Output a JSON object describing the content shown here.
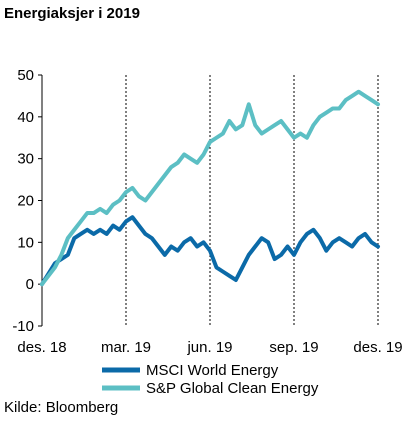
{
  "chart_data": {
    "type": "line",
    "title": "Energiaksjer i 2019",
    "xlabel": "",
    "ylabel": "",
    "ylim": [
      -10,
      50
    ],
    "yticks": [
      "-10",
      "0",
      "10",
      "20",
      "30",
      "40",
      "50"
    ],
    "x_tick_labels": [
      "des. 18",
      "mar. 19",
      "jun. 19",
      "sep. 19",
      "des. 19"
    ],
    "grid": "vertical dashed at x ticks",
    "legend_placement": "bottom-left",
    "source": "Kilde: Bloomberg",
    "series": [
      {
        "name": "MSCI World Energy",
        "color": "#0b6aa8",
        "x": [
          0,
          2,
          3,
          4,
          5,
          6,
          7,
          8,
          9,
          10,
          11,
          12,
          13,
          14,
          15,
          16,
          17,
          18,
          19,
          20,
          21,
          22,
          23,
          24,
          25,
          26,
          27,
          28,
          29,
          30,
          31,
          32,
          33,
          34,
          35,
          36,
          37,
          38,
          39,
          40,
          41,
          42,
          43,
          44,
          45,
          46,
          47,
          48,
          49,
          50,
          51,
          52
        ],
        "values": [
          0,
          5,
          6,
          7,
          11,
          12,
          13,
          12,
          13,
          12,
          14,
          13,
          15,
          16,
          14,
          12,
          11,
          9,
          7,
          9,
          8,
          10,
          11,
          9,
          10,
          8,
          4,
          3,
          2,
          1,
          4,
          7,
          9,
          11,
          10,
          6,
          7,
          9,
          7,
          10,
          12,
          13,
          11,
          8,
          10,
          11,
          10,
          9,
          11,
          12,
          10,
          9
        ]
      },
      {
        "name": "S&P Global Clean Energy",
        "color": "#5cbfc4",
        "x": [
          0,
          2,
          3,
          4,
          5,
          6,
          7,
          8,
          9,
          10,
          11,
          12,
          13,
          14,
          15,
          16,
          17,
          18,
          19,
          20,
          21,
          22,
          23,
          24,
          25,
          26,
          27,
          28,
          29,
          30,
          31,
          32,
          33,
          34,
          35,
          36,
          37,
          38,
          39,
          40,
          41,
          42,
          43,
          44,
          45,
          46,
          47,
          48,
          49,
          50,
          51,
          52
        ],
        "values": [
          0,
          4,
          7,
          11,
          13,
          15,
          17,
          17,
          18,
          17,
          19,
          20,
          22,
          23,
          21,
          20,
          22,
          24,
          26,
          28,
          29,
          31,
          30,
          29,
          31,
          34,
          35,
          36,
          39,
          37,
          38,
          43,
          38,
          36,
          37,
          38,
          39,
          37,
          35,
          36,
          35,
          38,
          40,
          41,
          42,
          42,
          44,
          45,
          46,
          45,
          44,
          43
        ]
      }
    ]
  }
}
